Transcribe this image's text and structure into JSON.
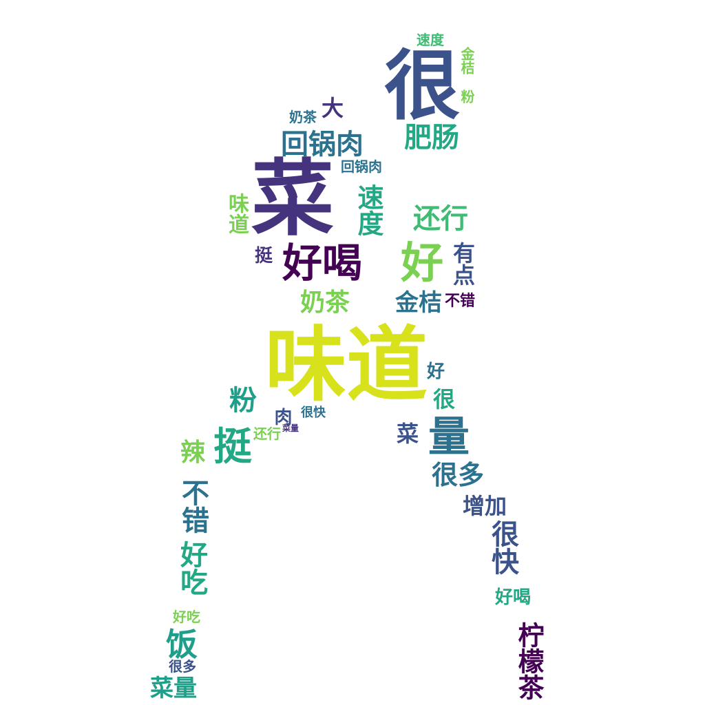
{
  "palette": {
    "yellow": "#d8e21c",
    "lime": "#7ad151",
    "green": "#3fbc73",
    "teal": "#22a884",
    "cyan": "#1f9e89",
    "blue": "#2c728e",
    "navy": "#3b528b",
    "indigo": "#46337e",
    "purple": "#440154"
  },
  "words": [
    "味道",
    "菜",
    "很",
    "好喝",
    "好",
    "回锅肉",
    "肥肠",
    "挺",
    "量",
    "菜",
    "很多",
    "很快",
    "还行",
    "奶茶",
    "速度",
    "金桔",
    "有点",
    "不错",
    "大",
    "粉",
    "饭",
    "辣",
    "增加",
    "柠檬茶",
    "好吃",
    "不错",
    "菜量",
    "很快",
    "肉",
    "很",
    "好",
    "好喝",
    "味道",
    "奶茶",
    "粉",
    "挺",
    "回锅肉",
    "速度",
    "金桔",
    "还行",
    "很多",
    "好吃",
    "菜量"
  ]
}
